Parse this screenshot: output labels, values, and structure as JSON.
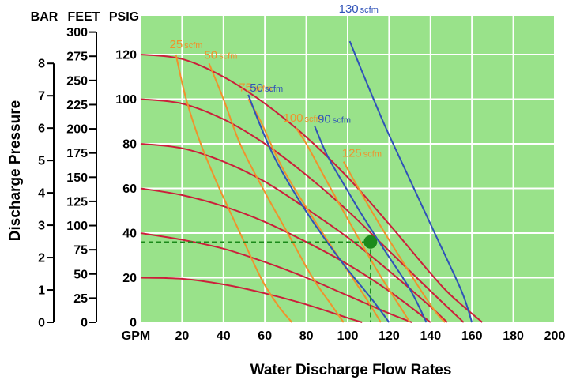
{
  "chart_data": {
    "type": "line",
    "title": "",
    "xlabel": "Water Discharge Flow Rates",
    "ylabel": "Discharge Pressure",
    "x_unit": "GPM",
    "xlim": [
      0,
      200
    ],
    "ylim": [
      0,
      130
    ],
    "x_ticks": [
      0,
      20,
      40,
      60,
      80,
      100,
      120,
      140,
      160,
      180,
      200
    ],
    "grid": true,
    "background_color": "#99e28a",
    "scales": [
      {
        "unit": "BAR",
        "ticks": [
          0,
          1,
          2,
          3,
          4,
          5,
          6,
          7,
          8
        ],
        "factor_to_psig": 14.5038
      },
      {
        "unit": "FEET",
        "ticks": [
          0,
          25,
          50,
          75,
          100,
          125,
          150,
          175,
          200,
          225,
          250,
          275,
          300
        ],
        "factor_to_psig": 0.4335
      },
      {
        "unit": "PSIG",
        "ticks": [
          0,
          20,
          40,
          60,
          80,
          100,
          120
        ],
        "factor_to_psig": 1
      }
    ],
    "pressure_curves": {
      "color": "#cc1f3a",
      "series": [
        {
          "x": [
            0,
            20,
            40,
            60,
            80,
            100,
            120,
            140,
            150,
            165
          ],
          "y": [
            120,
            118,
            110,
            98,
            83,
            65,
            44,
            22,
            12,
            0
          ]
        },
        {
          "x": [
            0,
            20,
            40,
            60,
            80,
            100,
            120,
            140,
            156
          ],
          "y": [
            100,
            98,
            91,
            80,
            66,
            50,
            32,
            14,
            0
          ]
        },
        {
          "x": [
            0,
            20,
            40,
            60,
            80,
            100,
            120,
            140,
            148
          ],
          "y": [
            80,
            78,
            72,
            63,
            51,
            38,
            23,
            7,
            0
          ]
        },
        {
          "x": [
            0,
            20,
            40,
            60,
            80,
            100,
            120,
            140
          ],
          "y": [
            60,
            57,
            52,
            45,
            36,
            26,
            14,
            0
          ]
        },
        {
          "x": [
            0,
            20,
            40,
            60,
            80,
            100,
            120,
            131
          ],
          "y": [
            40,
            37,
            33,
            27,
            20,
            12,
            4,
            0
          ]
        },
        {
          "x": [
            0,
            20,
            40,
            60,
            80,
            100,
            107
          ],
          "y": [
            20,
            19.5,
            17,
            13,
            8,
            2,
            0
          ]
        }
      ]
    },
    "air_curves": [
      {
        "label_num": "25",
        "label_unit": "scfm",
        "color": "#f0922c",
        "x": [
          17,
          22,
          29,
          38,
          48,
          58,
          66,
          73
        ],
        "y": [
          120,
          100,
          80,
          60,
          40,
          20,
          8,
          0
        ]
      },
      {
        "label_num": "50",
        "label_unit": "scfm",
        "color": "#f0922c",
        "x": [
          33,
          40,
          48,
          59,
          71,
          83,
          92,
          98
        ],
        "y": [
          116,
          100,
          80,
          60,
          40,
          20,
          8,
          0
        ]
      },
      {
        "label_num": "75",
        "label_unit": "scfm",
        "color": "#f0922c",
        "x": [
          52,
          58,
          68,
          81,
          95,
          108,
          116
        ],
        "y": [
          100,
          90,
          70,
          50,
          30,
          12,
          0
        ]
      },
      {
        "label_num": "100",
        "label_unit": "scfm",
        "color": "#f0922c",
        "x": [
          75,
          80,
          90,
          102,
          115,
          126,
          130
        ],
        "y": [
          87,
          80,
          63,
          43,
          22,
          6,
          0
        ]
      },
      {
        "label_num": "125",
        "label_unit": "scfm",
        "color": "#f0922c",
        "x": [
          98,
          104,
          114,
          126,
          137,
          143,
          147
        ],
        "y": [
          72,
          62,
          46,
          28,
          12,
          4,
          0
        ]
      },
      {
        "label_num": "50",
        "label_unit": "scfm",
        "color": "#2f52b8",
        "x": [
          52,
          57,
          64,
          73,
          84,
          98,
          112,
          120
        ],
        "y": [
          102,
          90,
          75,
          60,
          44,
          26,
          10,
          0
        ]
      },
      {
        "label_num": "90",
        "label_unit": "scfm",
        "color": "#2f52b8",
        "x": [
          84,
          90,
          98,
          107,
          118,
          130,
          138
        ],
        "y": [
          88,
          75,
          62,
          48,
          32,
          15,
          0
        ]
      },
      {
        "label_num": "130",
        "label_unit": "scfm",
        "color": "#2f52b8",
        "x": [
          101,
          108,
          118,
          130,
          143,
          155,
          160
        ],
        "y": [
          126,
          110,
          88,
          64,
          38,
          14,
          0
        ]
      }
    ],
    "operating_point": {
      "x": 111,
      "y": 36,
      "color": "#1b8a1b"
    }
  }
}
